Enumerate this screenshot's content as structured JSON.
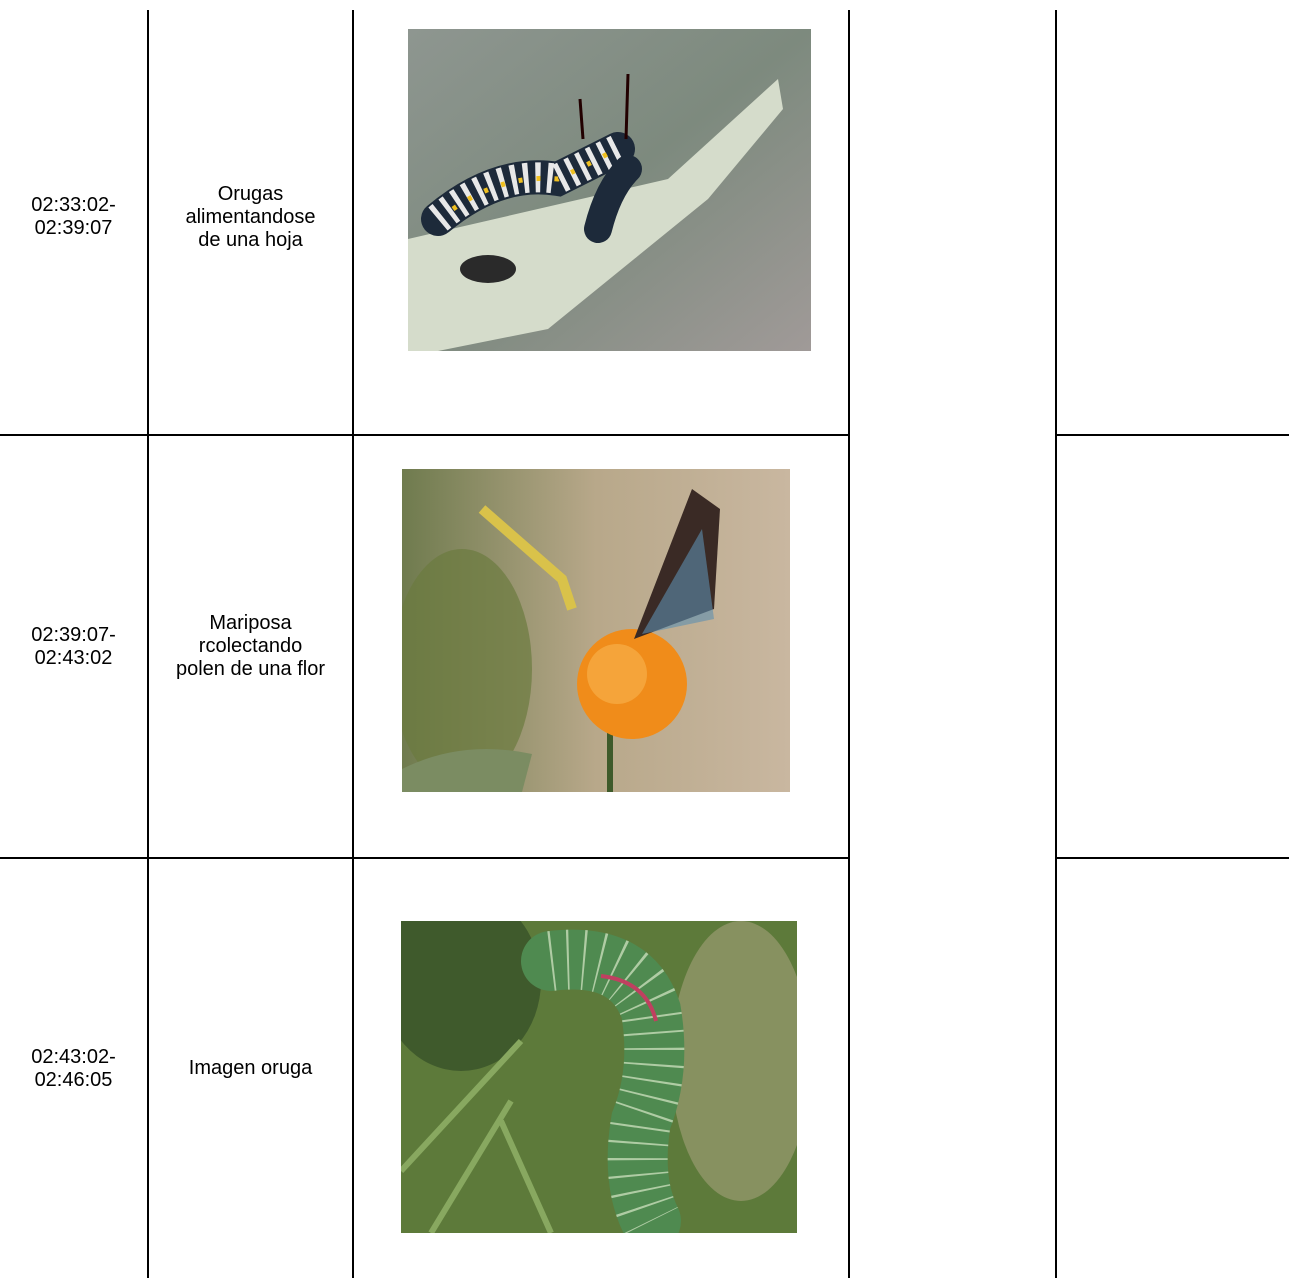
{
  "table": {
    "rows": [
      {
        "time": "02:33:02-02:39:07",
        "description": "Orugas alimentandose de una hoja"
      },
      {
        "time": "02:39:07-02:43:02",
        "description": "Mariposa rcolectando polen de una flor"
      },
      {
        "time": "02:43:02-02:46:05",
        "description": "Imagen oruga"
      }
    ]
  }
}
